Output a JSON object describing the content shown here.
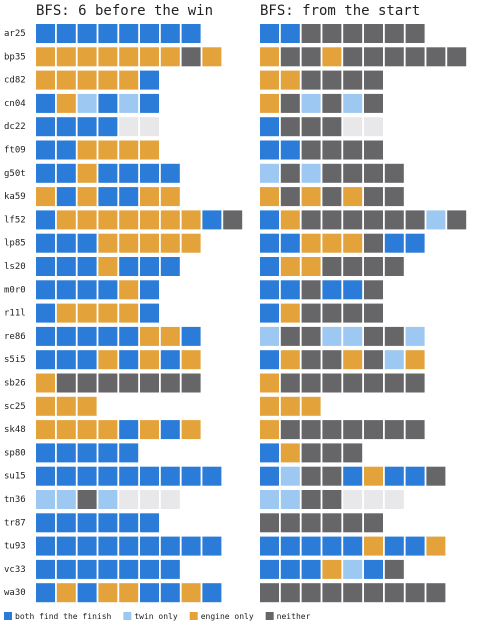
{
  "chart_data": {
    "type": "grid",
    "rows": [
      "ar25",
      "bp35",
      "cd82",
      "cn04",
      "dc22",
      "ft09",
      "g50t",
      "ka59",
      "lf52",
      "lp85",
      "ls20",
      "m0r0",
      "r11l",
      "re86",
      "s5i5",
      "sb26",
      "sc25",
      "sk48",
      "sp80",
      "su15",
      "tn36",
      "tr87",
      "tu93",
      "vc33",
      "wa30"
    ],
    "panels": [
      {
        "title": "BFS: 6 before the win",
        "cells": [
          [
            0,
            0,
            0,
            0,
            0,
            0,
            0,
            0
          ],
          [
            2,
            2,
            2,
            2,
            2,
            2,
            2,
            3,
            2
          ],
          [
            2,
            2,
            2,
            2,
            2,
            0
          ],
          [
            0,
            2,
            1,
            0,
            1,
            0
          ],
          [
            0,
            0,
            0,
            0,
            null,
            null
          ],
          [
            0,
            0,
            2,
            2,
            2,
            2
          ],
          [
            0,
            0,
            2,
            0,
            0,
            0,
            0
          ],
          [
            2,
            0,
            2,
            0,
            0,
            2,
            2
          ],
          [
            0,
            2,
            2,
            2,
            2,
            2,
            2,
            2,
            0,
            3
          ],
          [
            0,
            0,
            0,
            2,
            2,
            2,
            2,
            2
          ],
          [
            0,
            0,
            0,
            2,
            0,
            0,
            0
          ],
          [
            0,
            0,
            0,
            0,
            2,
            0
          ],
          [
            0,
            2,
            2,
            2,
            2,
            0
          ],
          [
            0,
            0,
            0,
            0,
            0,
            2,
            2,
            0
          ],
          [
            0,
            0,
            0,
            2,
            0,
            2,
            0,
            2
          ],
          [
            2,
            3,
            3,
            3,
            3,
            3,
            3,
            3
          ],
          [
            2,
            2,
            2
          ],
          [
            2,
            2,
            2,
            2,
            0,
            2,
            0,
            2
          ],
          [
            0,
            0,
            0,
            0,
            0
          ],
          [
            0,
            0,
            0,
            0,
            0,
            0,
            0,
            0,
            0
          ],
          [
            1,
            1,
            3,
            1,
            null,
            null,
            null
          ],
          [
            0,
            0,
            0,
            0,
            0,
            0
          ],
          [
            0,
            0,
            0,
            0,
            0,
            0,
            0,
            0,
            0
          ],
          [
            0,
            0,
            0,
            0,
            0,
            0,
            0
          ],
          [
            0,
            2,
            0,
            2,
            2,
            0,
            0,
            2,
            0
          ]
        ]
      },
      {
        "title": "BFS: from the start",
        "cells": [
          [
            0,
            0,
            3,
            3,
            3,
            3,
            3,
            3
          ],
          [
            2,
            3,
            3,
            2,
            3,
            3,
            3,
            3,
            3,
            3
          ],
          [
            2,
            2,
            3,
            3,
            3,
            3
          ],
          [
            2,
            3,
            1,
            3,
            1,
            3
          ],
          [
            0,
            3,
            3,
            3,
            null,
            null
          ],
          [
            0,
            0,
            3,
            3,
            3,
            3
          ],
          [
            1,
            3,
            1,
            3,
            3,
            3,
            3
          ],
          [
            2,
            3,
            2,
            3,
            2,
            3,
            3
          ],
          [
            0,
            2,
            3,
            3,
            3,
            3,
            3,
            3,
            1,
            3
          ],
          [
            0,
            0,
            2,
            2,
            2,
            3,
            0,
            0
          ],
          [
            0,
            2,
            2,
            3,
            3,
            3,
            3
          ],
          [
            0,
            0,
            3,
            0,
            0,
            3
          ],
          [
            0,
            2,
            3,
            3,
            3,
            3
          ],
          [
            1,
            3,
            3,
            1,
            1,
            3,
            3,
            1
          ],
          [
            0,
            2,
            3,
            3,
            2,
            3,
            1,
            2
          ],
          [
            2,
            3,
            3,
            3,
            3,
            3,
            3,
            3
          ],
          [
            2,
            2,
            2
          ],
          [
            2,
            3,
            3,
            3,
            3,
            3,
            3,
            3
          ],
          [
            0,
            2,
            3,
            3,
            3
          ],
          [
            0,
            1,
            3,
            3,
            0,
            2,
            0,
            0,
            3
          ],
          [
            1,
            1,
            3,
            3,
            null,
            null,
            null
          ],
          [
            3,
            3,
            3,
            3,
            3,
            3
          ],
          [
            0,
            0,
            0,
            0,
            0,
            2,
            0,
            0,
            2
          ],
          [
            0,
            0,
            0,
            2,
            1,
            0,
            3
          ],
          [
            3,
            3,
            3,
            3,
            3,
            3,
            3,
            3,
            3
          ]
        ]
      }
    ],
    "legend": [
      {
        "name": "both find the finish",
        "color": "#2b7bd8"
      },
      {
        "name": "twin only",
        "color": "#9cc8f2"
      },
      {
        "name": "engine only",
        "color": "#e3a33a"
      },
      {
        "name": "neither",
        "color": "#666669"
      }
    ],
    "blank_color": "#e8e8ea"
  }
}
